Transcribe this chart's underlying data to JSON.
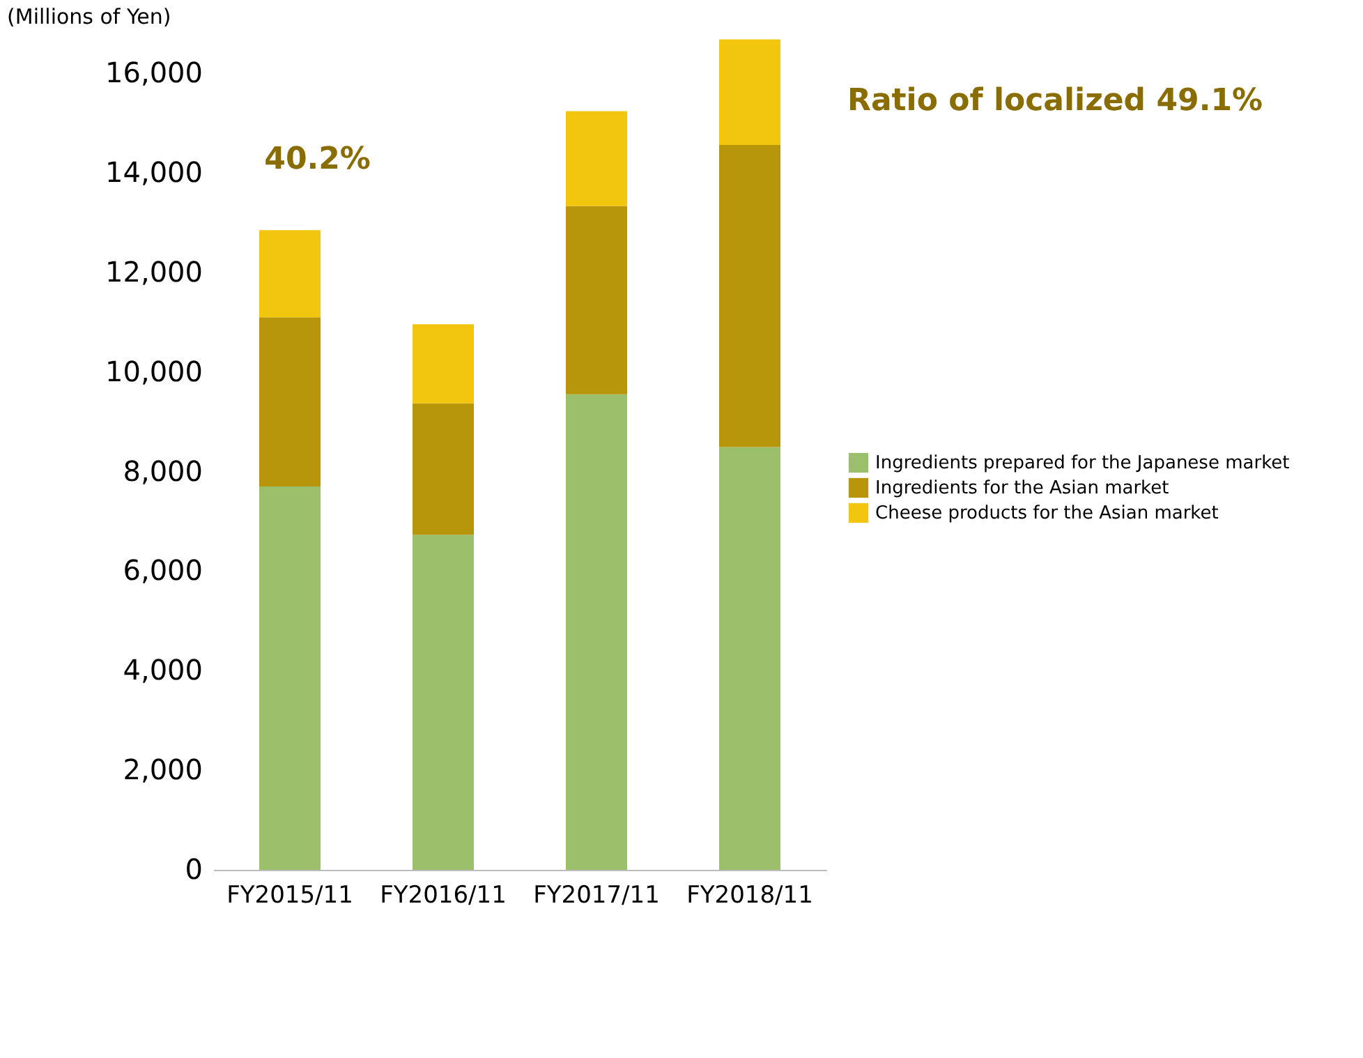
{
  "chart_data": {
    "type": "bar",
    "stacked": true,
    "ylabel": "(Millions of Yen)",
    "categories": [
      "FY2015/11",
      "FY2016/11",
      "FY2017/11",
      "FY2018/11"
    ],
    "series": [
      {
        "name": "Ingredients prepared for the Japanese market",
        "color": "#9bbf6a",
        "values": [
          7700,
          6730,
          9550,
          8490
        ]
      },
      {
        "name": "Ingredients for the Asian market",
        "color": "#b8960c",
        "values": [
          3400,
          2640,
          3780,
          6070
        ]
      },
      {
        "name": "Cheese products for the Asian market",
        "color": "#f2c50f",
        "values": [
          1750,
          1590,
          1910,
          2120
        ]
      }
    ],
    "ylim": [
      0,
      16800
    ],
    "yticks": [
      0,
      {
        "value": 2000,
        "label": "2,000"
      },
      {
        "value": 4000,
        "label": "4,000"
      },
      {
        "value": 6000,
        "label": "6,000"
      },
      {
        "value": 8000,
        "label": "8,000"
      },
      {
        "value": 10000,
        "label": "10,000"
      },
      {
        "value": 12000,
        "label": "12,000"
      },
      {
        "value": 14000,
        "label": "14,000"
      },
      {
        "value": 16000,
        "label": "16,000"
      }
    ],
    "grid": false,
    "legend": "right",
    "annotations": [
      "40.2%",
      "Ratio of localized 49.1%"
    ]
  }
}
